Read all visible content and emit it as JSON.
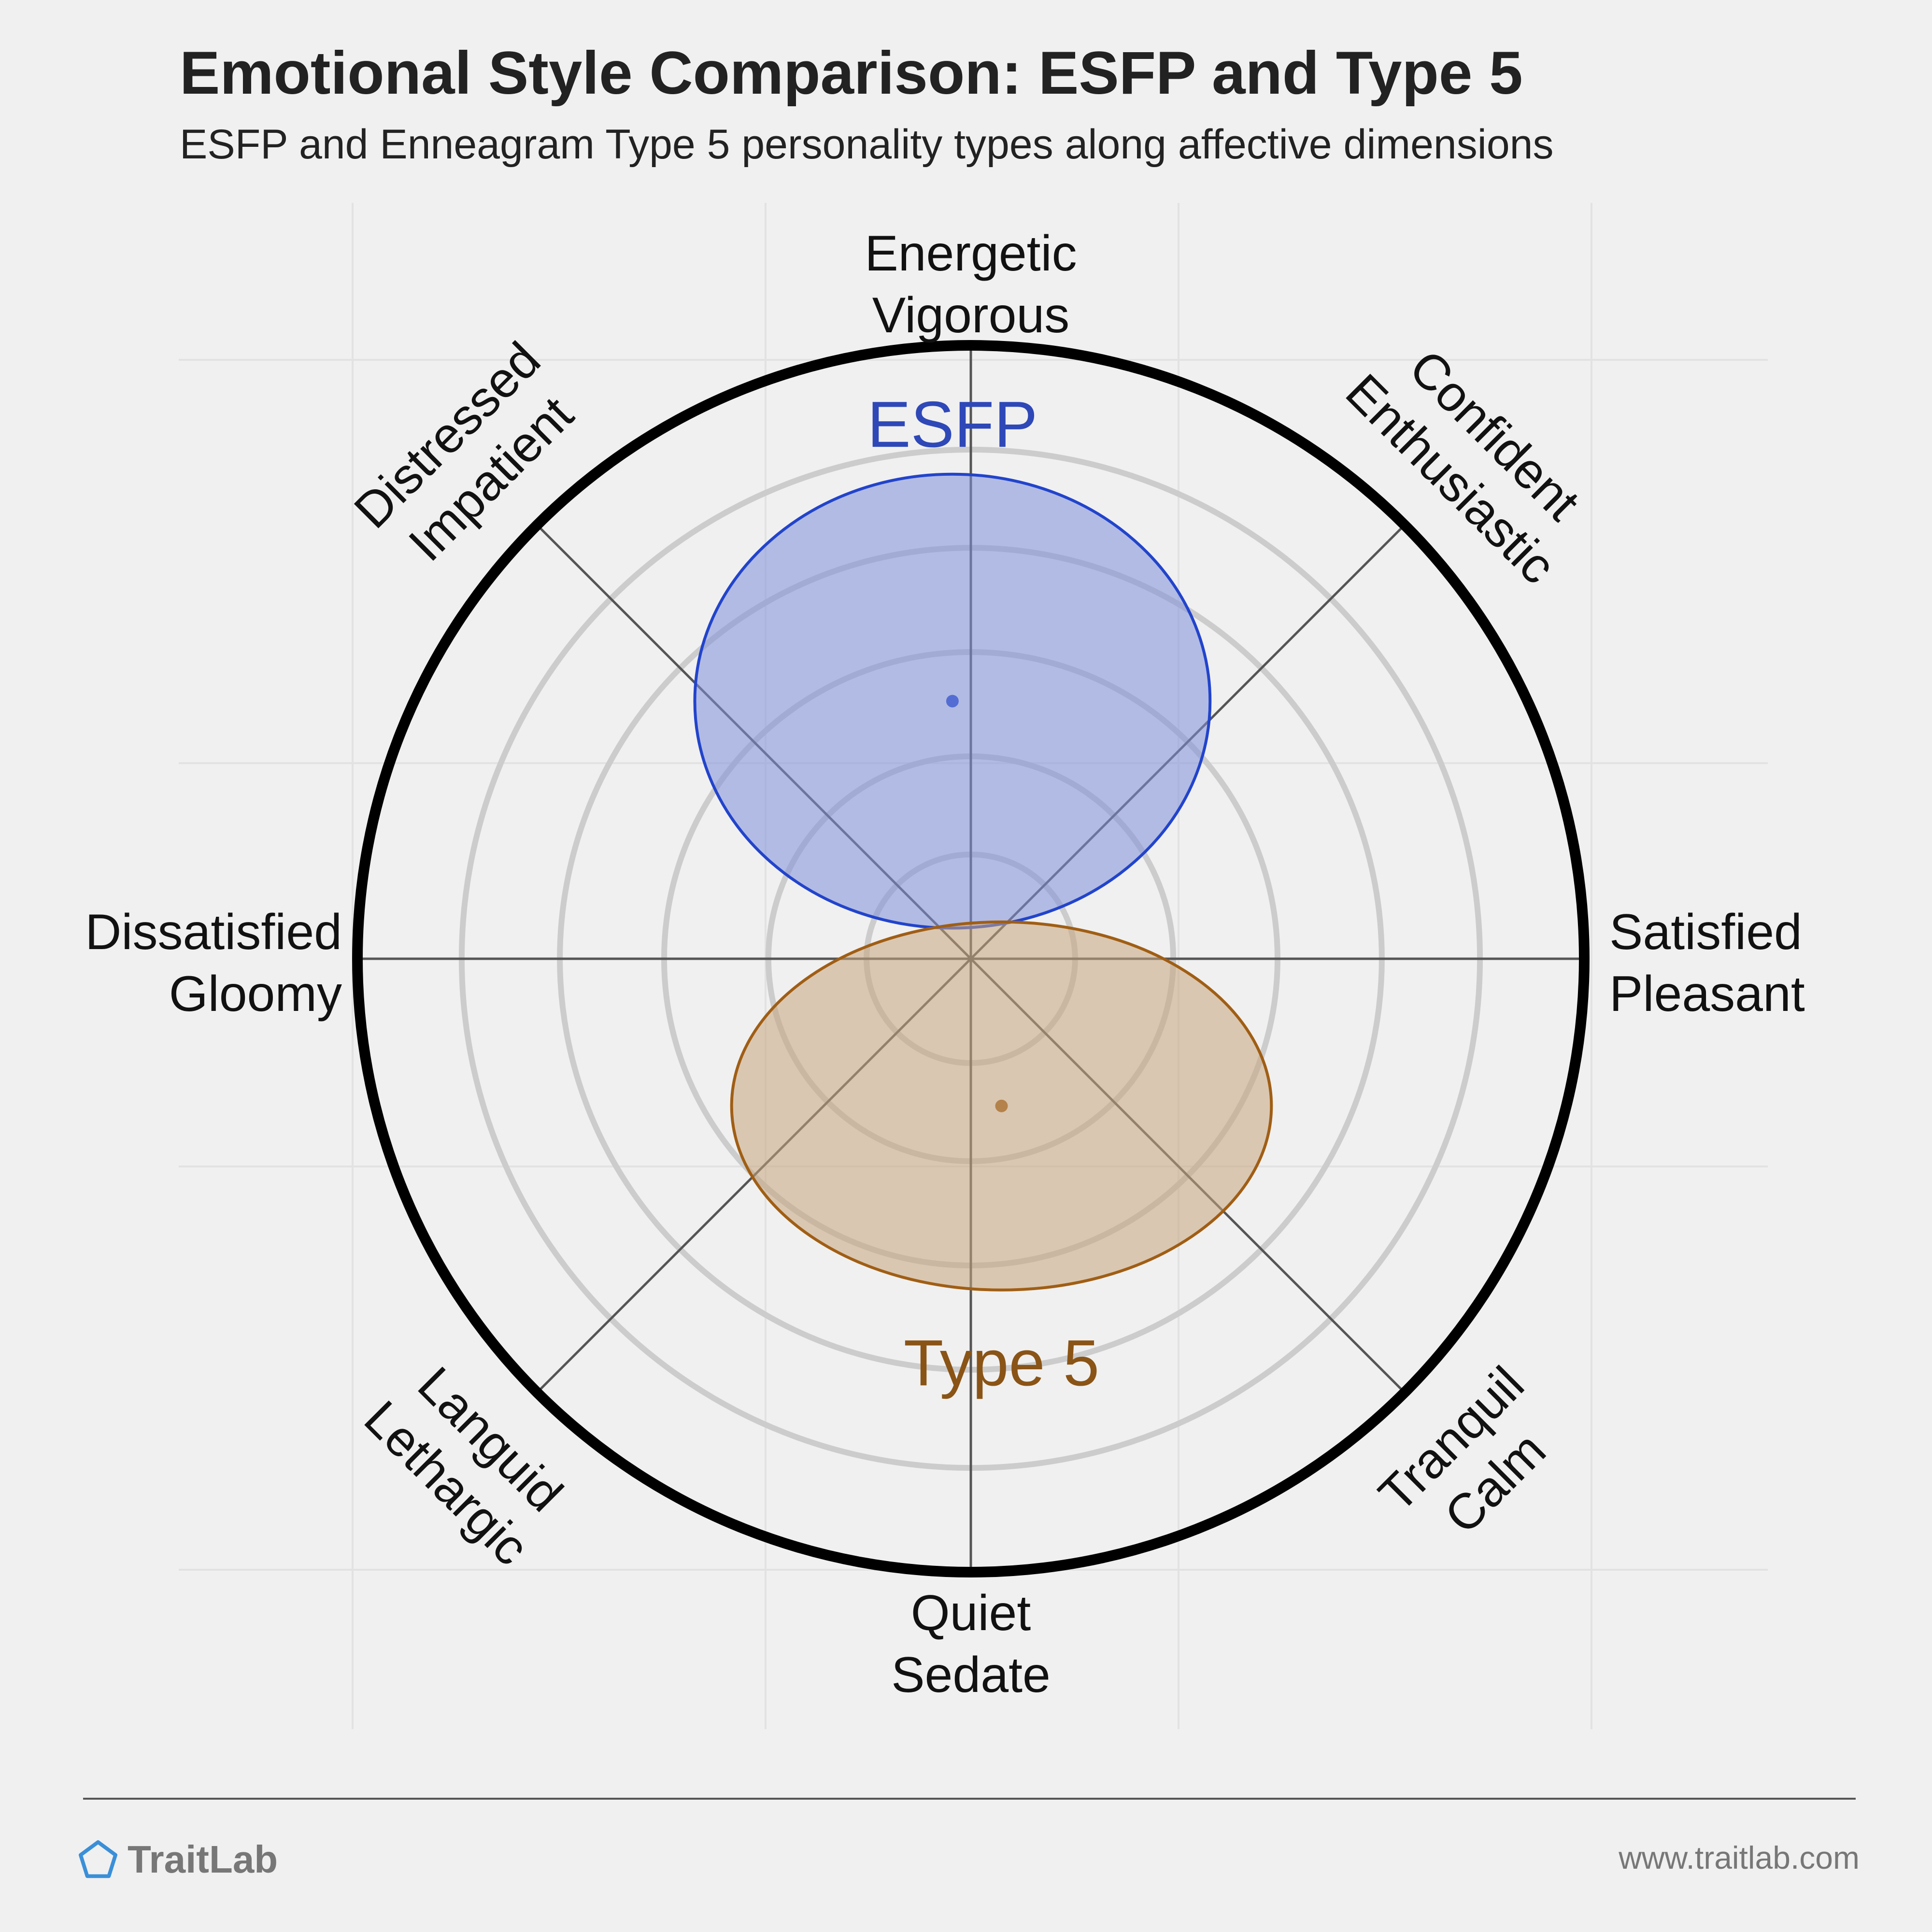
{
  "header": {
    "title": "Emotional Style Comparison: ESFP and Type 5",
    "subtitle": "ESFP and Enneagram Type 5 personality types along affective dimensions"
  },
  "chart_data": {
    "type": "circumplex",
    "axes": [
      {
        "angle": 90,
        "lines": [
          "Energetic",
          "Vigorous"
        ]
      },
      {
        "angle": 45,
        "lines": [
          "Confident",
          "Enthusiastic"
        ]
      },
      {
        "angle": 0,
        "lines": [
          "Satisfied",
          "Pleasant"
        ]
      },
      {
        "angle": -45,
        "lines": [
          "Tranquil",
          "Calm"
        ]
      },
      {
        "angle": -90,
        "lines": [
          "Quiet",
          "Sedate"
        ]
      },
      {
        "angle": -135,
        "lines": [
          "Languid",
          "Lethargic"
        ]
      },
      {
        "angle": 180,
        "lines": [
          "Dissatisfied",
          "Gloomy"
        ]
      },
      {
        "angle": 135,
        "lines": [
          "Distressed",
          "Impatient"
        ]
      }
    ],
    "range": [
      -1,
      1
    ],
    "rings": [
      0.17,
      0.33,
      0.5,
      0.67,
      0.83
    ],
    "series": [
      {
        "name": "ESFP",
        "center": [
          -0.03,
          0.42
        ],
        "spread": [
          0.42,
          0.37
        ],
        "fill": "#8090d8",
        "stroke": "#2244cc",
        "label_color": "#2e48b8",
        "label_pos": [
          -0.03,
          0.87
        ]
      },
      {
        "name": "Type 5",
        "center": [
          0.05,
          -0.24
        ],
        "spread": [
          0.44,
          0.3
        ],
        "fill": "#c8a67e",
        "stroke": "#a05e14",
        "label_color": "#8a5416",
        "label_pos": [
          0.05,
          -0.66
        ]
      }
    ]
  },
  "footer": {
    "brand": "TraitLab",
    "url": "www.traitlab.com"
  },
  "colors": {
    "background": "#f0f0f0",
    "ring": "#cccccc",
    "axis": "#555555",
    "outer_circle": "#000000",
    "brand_icon": "#3a8fd8"
  }
}
